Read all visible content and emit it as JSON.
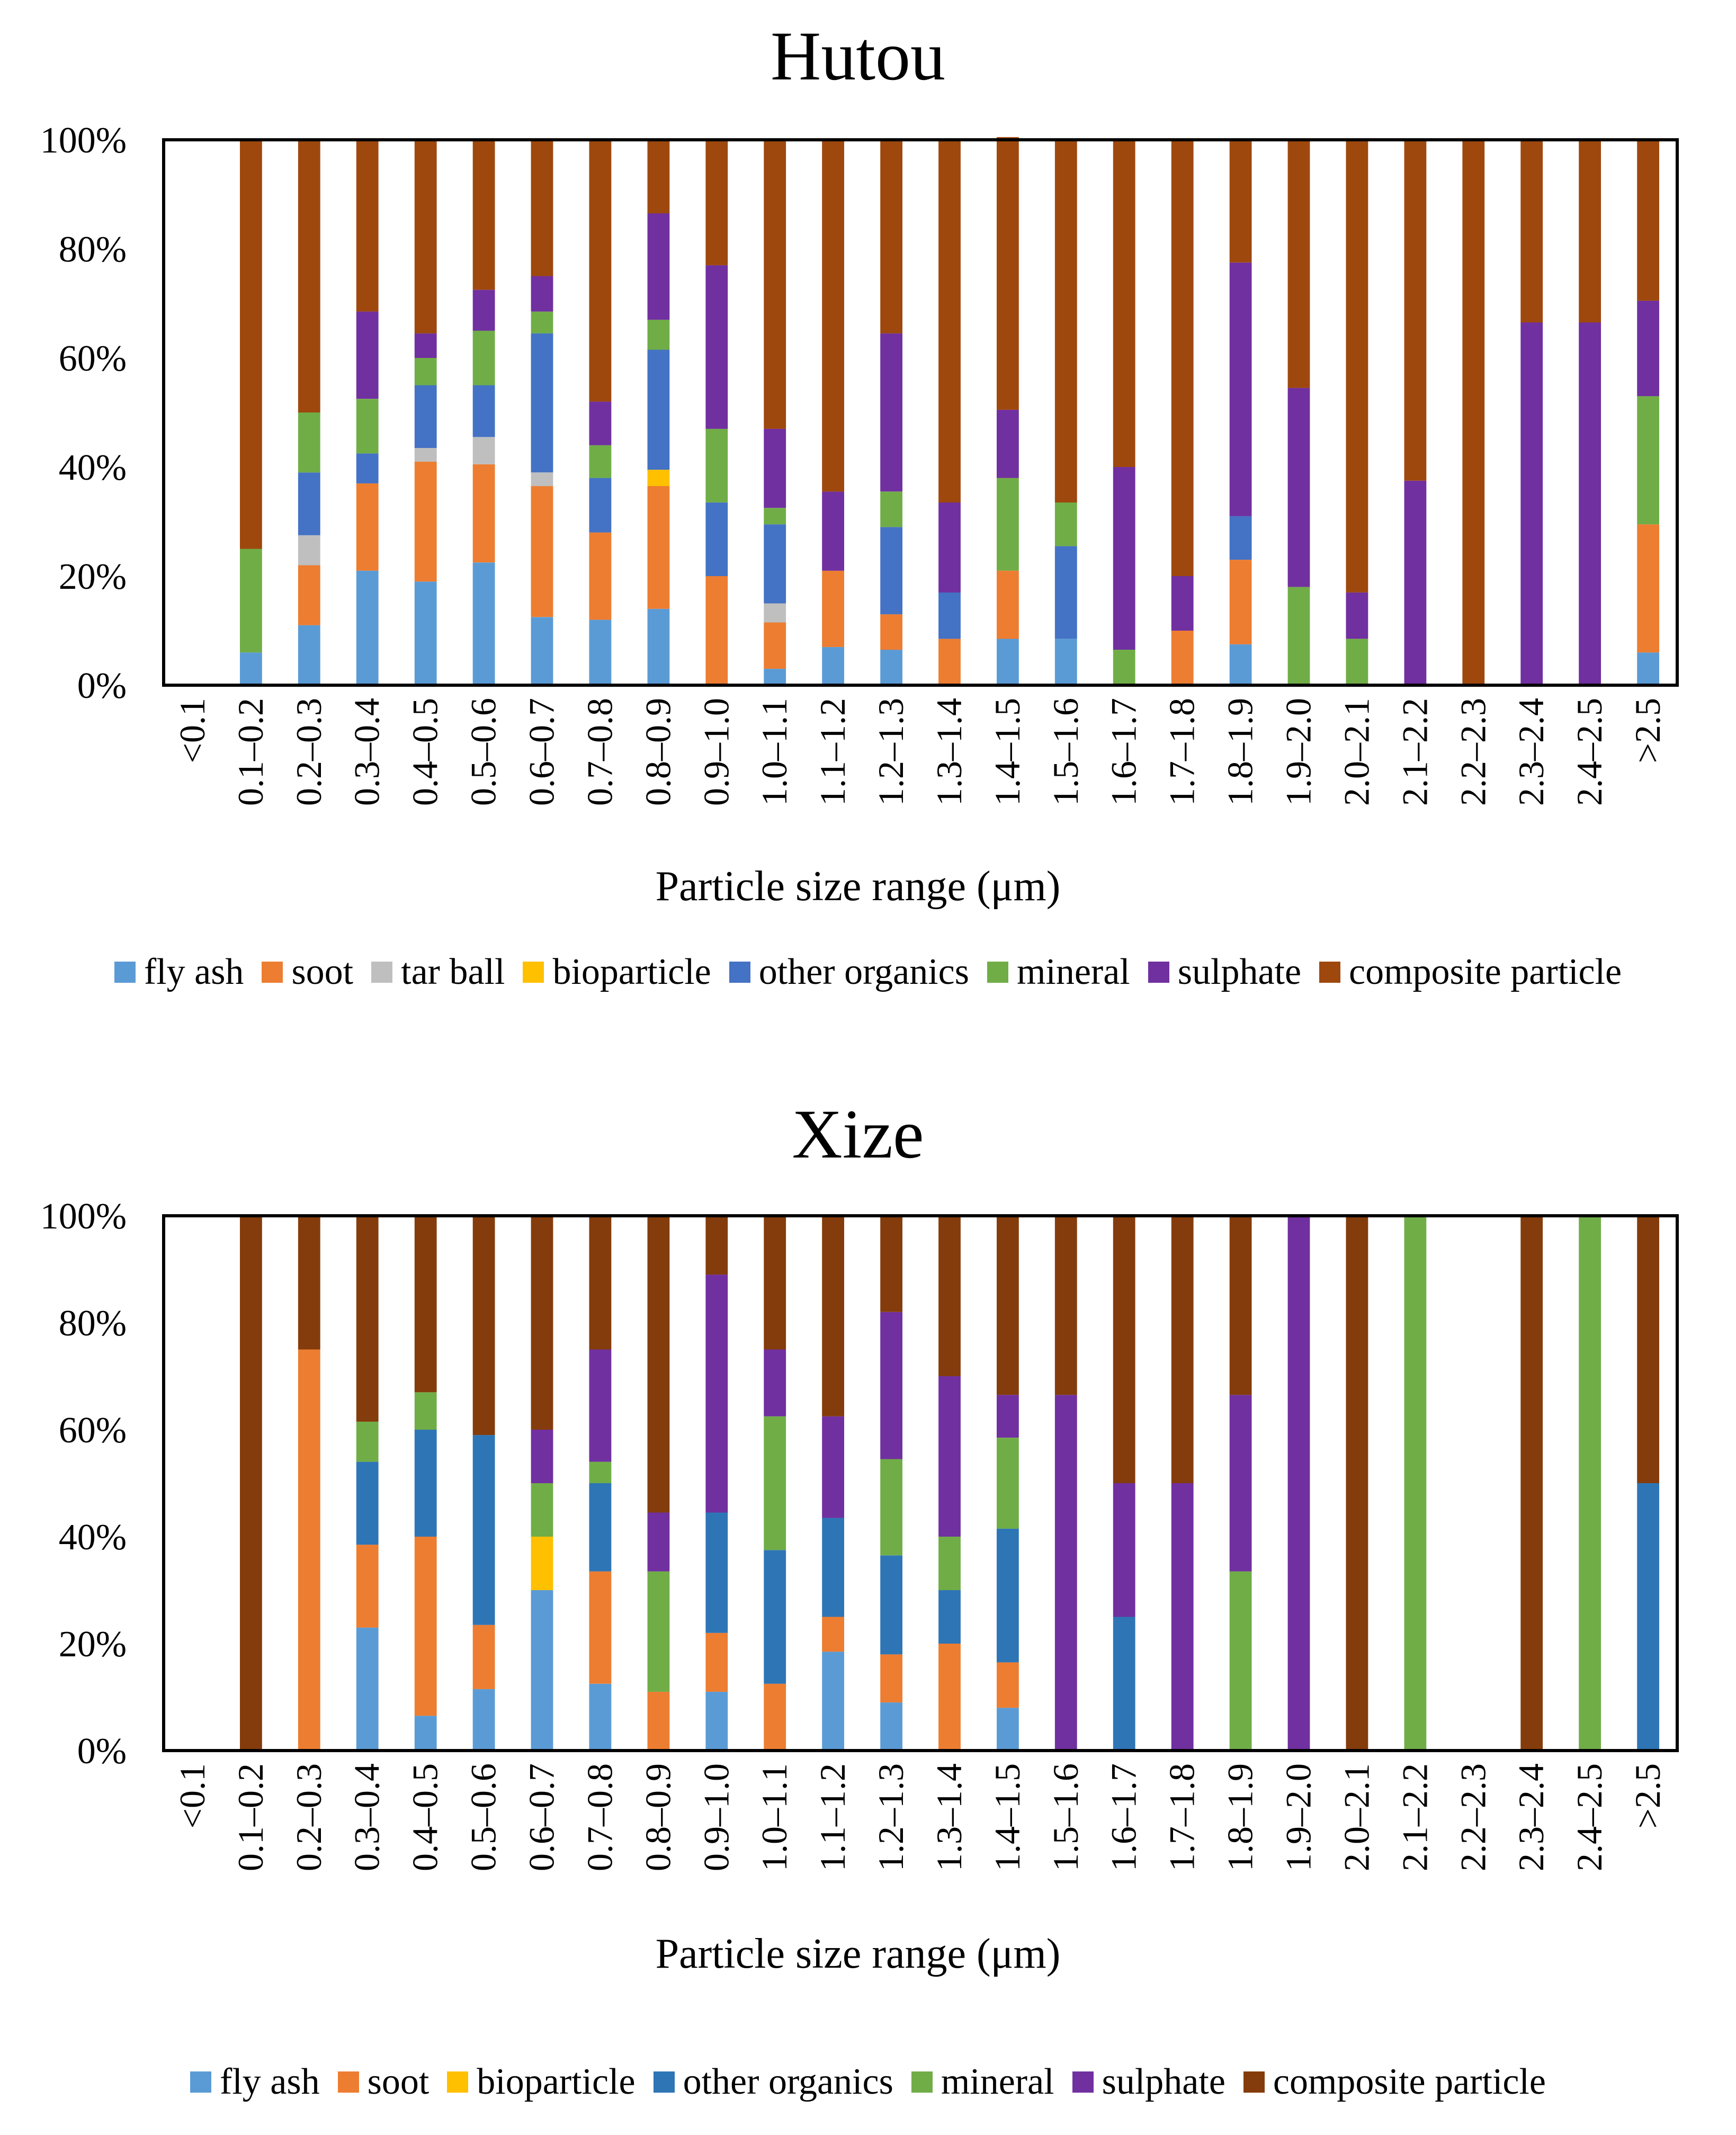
{
  "chart_data": [
    {
      "type": "bar",
      "stacked": "percent",
      "title": "Hutou",
      "xlabel": "Particle size range (μm)",
      "ylabel": "",
      "ylim": [
        0,
        100
      ],
      "yticks": [
        "0%",
        "20%",
        "40%",
        "60%",
        "80%",
        "100%"
      ],
      "legend_position": "bottom",
      "categories": [
        "<0.1",
        "0.1–0.2",
        "0.2–0.3",
        "0.3–0.4",
        "0.4–0.5",
        "0.5–0.6",
        "0.6–0.7",
        "0.7–0.8",
        "0.8–0.9",
        "0.9–1.0",
        "1.0–1.1",
        "1.1–1.2",
        "1.2–1.3",
        "1.3–1.4",
        "1.4–1.5",
        "1.5–1.6",
        "1.6–1.7",
        "1.7–1.8",
        "1.8–1.9",
        "1.9–2.0",
        "2.0–2.1",
        "2.1–2.2",
        "2.2–2.3",
        "2.3–2.4",
        "2.4–2.5",
        ">2.5"
      ],
      "series": [
        {
          "name": "fly ash",
          "color": "#5b9bd5",
          "values": [
            0,
            6,
            11,
            21,
            19,
            22.5,
            12.5,
            12,
            14,
            0,
            3,
            7,
            6.5,
            0,
            8.5,
            8.5,
            0,
            0,
            7.5,
            0,
            0,
            0,
            0,
            0,
            0,
            6
          ]
        },
        {
          "name": "soot",
          "color": "#ed7d31",
          "values": [
            0,
            0,
            11,
            16,
            22,
            18,
            24,
            16,
            22.5,
            20,
            8.5,
            14,
            6.5,
            8.5,
            12.5,
            0,
            0,
            10,
            15.5,
            0,
            0,
            0,
            0,
            0,
            0,
            23.5
          ]
        },
        {
          "name": "tar ball",
          "color": "#bfbfbf",
          "values": [
            0,
            0,
            5.5,
            0,
            2.5,
            5,
            2.5,
            0,
            0,
            0,
            3.5,
            0,
            0,
            0,
            0,
            0,
            0,
            0,
            0,
            0,
            0,
            0,
            0,
            0,
            0,
            0
          ]
        },
        {
          "name": "bioparticle",
          "color": "#ffc000",
          "values": [
            0,
            0,
            0,
            0,
            0,
            0,
            0,
            0,
            3,
            0,
            0,
            0,
            0,
            0,
            0,
            0,
            0,
            0,
            0,
            0,
            0,
            0,
            0,
            0,
            0,
            0
          ]
        },
        {
          "name": "other organics",
          "color": "#4472c4",
          "values": [
            0,
            0,
            11.5,
            5.5,
            11.5,
            9.5,
            25.5,
            10,
            22,
            13.5,
            14.5,
            0,
            16,
            8.5,
            0,
            17,
            0,
            0,
            8,
            0,
            0,
            0,
            0,
            0,
            0,
            0
          ]
        },
        {
          "name": "mineral",
          "color": "#70ad47",
          "values": [
            0,
            19,
            11,
            10,
            5,
            10,
            4,
            6,
            5.5,
            13.5,
            3,
            0,
            6.5,
            0,
            17,
            8,
            6.5,
            0,
            0,
            18,
            8.5,
            0,
            0,
            0,
            0,
            23.5
          ]
        },
        {
          "name": "sulphate",
          "color": "#7030a0",
          "values": [
            0,
            0,
            0,
            16,
            4.5,
            7.5,
            6.5,
            8,
            19.5,
            30,
            14.5,
            14.5,
            29,
            16.5,
            12.5,
            0,
            33.5,
            10,
            46.5,
            36.5,
            8.5,
            37.5,
            0,
            66.5,
            66.5,
            17.5
          ]
        },
        {
          "name": "composite particle",
          "color": "#9e480e",
          "values": [
            0,
            75,
            50,
            31.5,
            35.5,
            27.5,
            25,
            48,
            13.5,
            23,
            53,
            64.5,
            35.5,
            66.5,
            50,
            66.5,
            60,
            80,
            22.5,
            45.5,
            83,
            62.5,
            100,
            33.5,
            33.5,
            29.5
          ]
        }
      ]
    },
    {
      "type": "bar",
      "stacked": "percent",
      "title": "Xize",
      "xlabel": "Particle size range (μm)",
      "ylabel": "",
      "ylim": [
        0,
        100
      ],
      "yticks": [
        "0%",
        "20%",
        "40%",
        "60%",
        "80%",
        "100%"
      ],
      "legend_position": "bottom",
      "categories": [
        "<0.1",
        "0.1–0.2",
        "0.2–0.3",
        "0.3–0.4",
        "0.4–0.5",
        "0.5–0.6",
        "0.6–0.7",
        "0.7–0.8",
        "0.8–0.9",
        "0.9–1.0",
        "1.0–1.1",
        "1.1–1.2",
        "1.2–1.3",
        "1.3–1.4",
        "1.4–1.5",
        "1.5–1.6",
        "1.6–1.7",
        "1.7–1.8",
        "1.8–1.9",
        "1.9–2.0",
        "2.0–2.1",
        "2.1–2.2",
        "2.2–2.3",
        "2.3–2.4",
        "2.4–2.5",
        ">2.5"
      ],
      "series": [
        {
          "name": "fly ash",
          "color": "#5b9bd5",
          "values": [
            0,
            0,
            0,
            23,
            6.5,
            11.5,
            30,
            12.5,
            0,
            11,
            0,
            18.5,
            9,
            0,
            8,
            0,
            0,
            0,
            0,
            0,
            0,
            0,
            0,
            0,
            0,
            0
          ]
        },
        {
          "name": "soot",
          "color": "#ed7d31",
          "values": [
            0,
            0,
            75,
            15.5,
            33.5,
            12,
            0,
            21,
            11,
            11,
            12.5,
            6.5,
            9,
            20,
            8.5,
            0,
            0,
            0,
            0,
            0,
            0,
            0,
            0,
            0,
            0,
            0
          ]
        },
        {
          "name": "bioparticle",
          "color": "#ffc000",
          "values": [
            0,
            0,
            0,
            0,
            0,
            0,
            10,
            0,
            0,
            0,
            0,
            0,
            0,
            0,
            0,
            0,
            0,
            0,
            0,
            0,
            0,
            0,
            0,
            0,
            0,
            0
          ]
        },
        {
          "name": "other organics",
          "color": "#2e75b6",
          "values": [
            0,
            0,
            0,
            15.5,
            20,
            35.5,
            0,
            16.5,
            0,
            22.5,
            25,
            18.5,
            18.5,
            10,
            25,
            0,
            25,
            0,
            0,
            0,
            0,
            0,
            0,
            0,
            0,
            50
          ]
        },
        {
          "name": "mineral",
          "color": "#70ad47",
          "values": [
            0,
            0,
            0,
            7.5,
            7,
            0,
            10,
            4,
            22.5,
            0,
            25,
            0,
            18,
            10,
            17,
            0,
            0,
            0,
            33.5,
            0,
            0,
            100,
            0,
            0,
            100,
            0
          ]
        },
        {
          "name": "sulphate",
          "color": "#7030a0",
          "values": [
            0,
            0,
            0,
            0,
            0,
            0,
            10,
            21,
            11,
            44.5,
            12.5,
            19,
            27.5,
            30,
            8,
            66.5,
            25,
            50,
            33,
            100,
            0,
            0,
            0,
            0,
            0,
            0
          ]
        },
        {
          "name": "composite particle",
          "color": "#843c0c",
          "values": [
            0,
            100,
            25,
            38.5,
            33,
            41,
            40,
            25,
            55.5,
            11,
            25,
            37.5,
            18,
            30,
            33.5,
            33.5,
            50,
            50,
            33.5,
            0,
            100,
            0,
            0,
            100,
            0,
            50
          ]
        }
      ]
    }
  ]
}
